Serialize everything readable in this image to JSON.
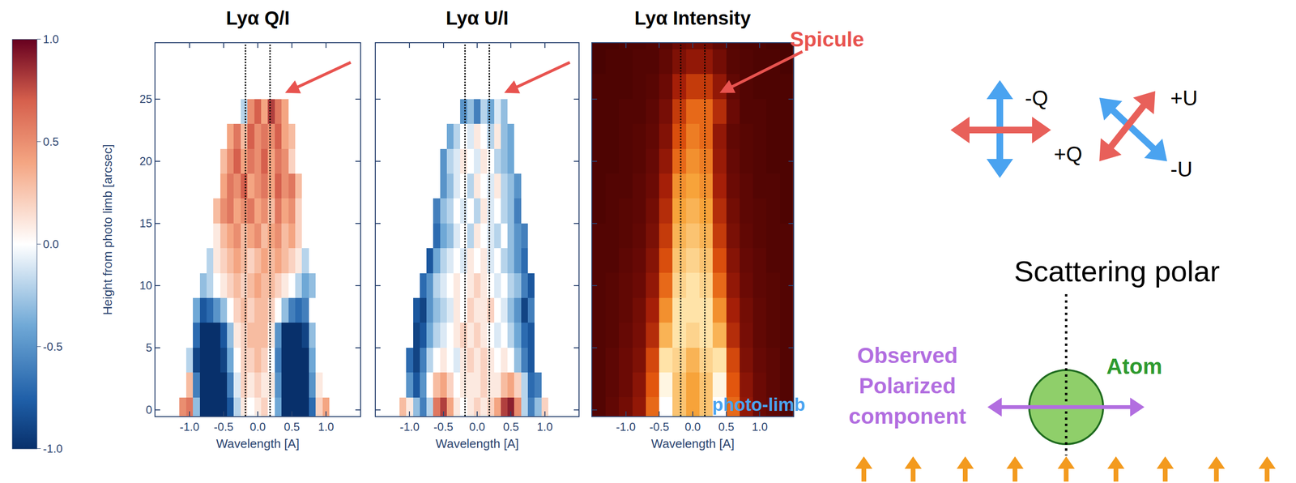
{
  "chart_data": [
    {
      "type": "heatmap",
      "title": "Lyα Q/I",
      "x": [
        -1.1,
        -1.0,
        -0.9,
        -0.8,
        -0.7,
        -0.6,
        -0.5,
        -0.4,
        -0.3,
        -0.2,
        -0.1,
        0.0,
        0.1,
        0.2,
        0.3,
        0.4,
        0.5,
        0.6,
        0.7,
        0.8,
        0.9,
        1.0,
        1.1
      ],
      "y": [
        0,
        2,
        4,
        6,
        8,
        10,
        12,
        14,
        16,
        18,
        20,
        22,
        24
      ],
      "z": [
        [
          0.5,
          0.6,
          -0.3,
          -1,
          -1,
          -1,
          -1,
          -0.8,
          -0.2,
          0.1,
          0.0,
          0.1,
          0.2,
          0.0,
          -0.4,
          -1,
          -1,
          -1,
          -1,
          -0.7,
          0.2,
          0.4,
          null
        ],
        [
          null,
          0.3,
          -0.6,
          -1,
          -1,
          -1,
          -1,
          -0.6,
          -0.1,
          0.2,
          0.1,
          0.2,
          0.1,
          0.1,
          -0.5,
          -1,
          -1,
          -1,
          -1,
          -0.5,
          0.1,
          null,
          null
        ],
        [
          null,
          -0.2,
          -0.9,
          -1,
          -1,
          -1,
          -0.9,
          -0.4,
          0.0,
          0.2,
          0.2,
          0.3,
          0.2,
          0.0,
          -0.6,
          -1,
          -1,
          -1,
          -1,
          -0.4,
          null,
          null,
          null
        ],
        [
          null,
          null,
          -0.7,
          -1,
          -1,
          -1,
          -0.8,
          -0.3,
          0.1,
          0.2,
          0.3,
          0.3,
          0.3,
          0.1,
          -0.5,
          -1,
          -1,
          -1,
          -0.9,
          -0.3,
          null,
          null,
          null
        ],
        [
          null,
          null,
          -0.4,
          -0.8,
          -0.7,
          -0.5,
          -0.3,
          0.0,
          0.2,
          0.3,
          0.2,
          0.3,
          0.3,
          0.2,
          0.0,
          -0.3,
          -0.6,
          -0.7,
          -0.6,
          null,
          null,
          null,
          null
        ],
        [
          null,
          null,
          null,
          -0.3,
          -0.2,
          0.0,
          0.1,
          0.2,
          0.3,
          0.2,
          0.3,
          0.4,
          0.3,
          0.3,
          0.2,
          0.1,
          0.0,
          -0.2,
          -0.4,
          -0.3,
          null,
          null,
          null
        ],
        [
          null,
          null,
          null,
          null,
          -0.2,
          0.1,
          0.2,
          0.3,
          0.4,
          0.3,
          0.2,
          0.3,
          0.4,
          0.3,
          0.4,
          0.3,
          0.2,
          0.1,
          -0.2,
          null,
          null,
          null,
          null
        ],
        [
          null,
          null,
          null,
          null,
          null,
          0.1,
          0.3,
          0.4,
          0.5,
          0.3,
          0.4,
          0.5,
          0.3,
          0.4,
          0.5,
          0.3,
          0.4,
          0.2,
          0.0,
          null,
          null,
          null,
          null
        ],
        [
          null,
          null,
          null,
          null,
          null,
          0.3,
          0.5,
          0.6,
          0.4,
          0.5,
          0.6,
          0.4,
          0.5,
          0.3,
          0.6,
          0.4,
          0.5,
          0.2,
          null,
          null,
          null,
          null,
          null
        ],
        [
          null,
          null,
          null,
          null,
          null,
          null,
          0.4,
          0.6,
          0.5,
          0.7,
          0.4,
          0.5,
          0.6,
          0.4,
          0.7,
          0.5,
          0.6,
          0.3,
          null,
          null,
          null,
          null,
          null
        ],
        [
          null,
          null,
          null,
          null,
          null,
          null,
          0.3,
          0.5,
          0.7,
          0.4,
          0.6,
          0.5,
          0.7,
          0.4,
          0.6,
          0.5,
          0.2,
          null,
          null,
          null,
          null,
          null,
          null
        ],
        [
          null,
          null,
          null,
          null,
          null,
          null,
          null,
          0.4,
          0.6,
          0.3,
          0.7,
          0.5,
          0.6,
          0.5,
          0.7,
          0.4,
          0.3,
          null,
          null,
          null,
          null,
          null,
          null
        ],
        [
          null,
          null,
          null,
          null,
          null,
          null,
          null,
          null,
          null,
          -0.2,
          0.5,
          0.7,
          0.4,
          0.8,
          0.6,
          0.4,
          null,
          null,
          null,
          null,
          null,
          null,
          null
        ]
      ],
      "zlim": [
        -1,
        1
      ],
      "color": "blue-white-red",
      "colorbar_ticks": [
        {
          "value": -1,
          "label": "-1.0"
        },
        {
          "value": -0.5,
          "label": "-0.5"
        },
        {
          "value": 0,
          "label": "0.0"
        },
        {
          "value": 0.5,
          "label": "0.5"
        },
        {
          "value": 1,
          "label": "1.0"
        }
      ],
      "xlim": [
        -1.5,
        1.5
      ],
      "ylim": [
        -0.5,
        29.5
      ],
      "xticks": [
        {
          "value": -1,
          "label": "-1.0"
        },
        {
          "value": -0.5,
          "label": "-0.5"
        },
        {
          "value": 0,
          "label": "0.0"
        },
        {
          "value": 0.5,
          "label": "0.5"
        },
        {
          "value": 1,
          "label": "1.0"
        }
      ],
      "yticks": [
        0,
        5,
        10,
        15,
        20,
        25
      ],
      "xlabel": "Wavelength [A]",
      "ylabel": "Height from photo limb [arcsec]",
      "reference_lines": [
        -0.18,
        0.18
      ],
      "annotations": [
        {
          "x": 0.4,
          "y": 25.5,
          "color": "#e8534f"
        }
      ]
    },
    {
      "type": "heatmap",
      "title": "Lyα U/I",
      "x": [
        -1.1,
        -1.0,
        -0.9,
        -0.8,
        -0.7,
        -0.6,
        -0.5,
        -0.4,
        -0.3,
        -0.2,
        -0.1,
        0.0,
        0.1,
        0.2,
        0.3,
        0.4,
        0.5,
        0.6,
        0.7,
        0.8,
        0.9,
        1.0,
        1.1
      ],
      "y": [
        0,
        2,
        4,
        6,
        8,
        10,
        12,
        14,
        16,
        18,
        20,
        22,
        24
      ],
      "z": [
        [
          0.3,
          0.1,
          -0.3,
          -0.6,
          -0.2,
          0.6,
          0.8,
          0.4,
          0.1,
          0.0,
          0.1,
          0.2,
          0.1,
          0.2,
          0.4,
          0.8,
          0.9,
          0.5,
          -0.2,
          -0.6,
          -0.3,
          0.2,
          null
        ],
        [
          null,
          -0.5,
          -0.8,
          -0.5,
          0.0,
          0.3,
          0.4,
          0.2,
          0.0,
          0.1,
          0.1,
          0.1,
          0.2,
          0.1,
          0.1,
          0.3,
          0.4,
          0.2,
          -0.2,
          -0.7,
          -0.6,
          null,
          null
        ],
        [
          null,
          -0.7,
          -0.9,
          -0.6,
          -0.2,
          0.0,
          0.1,
          0.0,
          -0.1,
          0.1,
          0.2,
          0.1,
          0.2,
          0.1,
          0.0,
          0.1,
          0.0,
          -0.3,
          -0.6,
          -0.8,
          null,
          null,
          null
        ],
        [
          null,
          null,
          -0.9,
          -0.8,
          -0.4,
          -0.2,
          -0.1,
          0.0,
          0.1,
          0.2,
          0.1,
          0.2,
          0.1,
          0.0,
          -0.1,
          0.0,
          -0.2,
          -0.4,
          -0.7,
          -0.8,
          null,
          null,
          null
        ],
        [
          null,
          null,
          -0.8,
          -0.9,
          -0.5,
          -0.3,
          -0.2,
          -0.1,
          0.1,
          0.0,
          0.2,
          0.1,
          0.1,
          0.2,
          0.0,
          -0.1,
          -0.3,
          -0.5,
          -0.9,
          -0.6,
          null,
          null,
          null
        ],
        [
          null,
          null,
          null,
          -0.7,
          -0.5,
          -0.2,
          -0.1,
          0.0,
          0.1,
          0.0,
          0.1,
          0.2,
          0.1,
          0.0,
          -0.1,
          0.0,
          -0.2,
          -0.3,
          -0.6,
          -0.8,
          null,
          null,
          null
        ],
        [
          null,
          null,
          null,
          null,
          -0.8,
          -0.4,
          -0.2,
          -0.1,
          0.0,
          -0.1,
          0.1,
          0.0,
          0.1,
          -0.1,
          0.0,
          -0.2,
          -0.3,
          -0.5,
          -0.7,
          null,
          null,
          null,
          null
        ],
        [
          null,
          null,
          null,
          null,
          null,
          -0.7,
          -0.4,
          -0.3,
          -0.1,
          0.0,
          -0.2,
          0.1,
          0.0,
          -0.1,
          -0.2,
          0.0,
          -0.3,
          -0.5,
          -0.6,
          null,
          null,
          null,
          null
        ],
        [
          null,
          null,
          null,
          null,
          null,
          -0.6,
          -0.3,
          -0.2,
          0.0,
          -0.1,
          0.0,
          -0.2,
          0.1,
          -0.1,
          0.0,
          -0.2,
          -0.3,
          -0.6,
          null,
          null,
          null,
          null,
          null
        ],
        [
          null,
          null,
          null,
          null,
          null,
          null,
          -0.5,
          -0.3,
          -0.1,
          0.0,
          -0.2,
          0.1,
          0.0,
          -0.1,
          0.1,
          -0.2,
          -0.3,
          -0.5,
          null,
          null,
          null,
          null,
          null
        ],
        [
          null,
          null,
          null,
          null,
          null,
          null,
          -0.5,
          -0.2,
          -0.1,
          0.1,
          0.0,
          -0.1,
          0.1,
          0.0,
          -0.2,
          -0.3,
          -0.4,
          null,
          null,
          null,
          null,
          null,
          null
        ],
        [
          null,
          null,
          null,
          null,
          null,
          null,
          null,
          -0.4,
          -0.2,
          0.0,
          -0.1,
          0.1,
          0.0,
          -0.2,
          0.1,
          -0.3,
          -0.4,
          null,
          null,
          null,
          null,
          null,
          null
        ],
        [
          null,
          null,
          null,
          null,
          null,
          null,
          null,
          null,
          null,
          -0.5,
          -0.3,
          -0.6,
          -0.2,
          -0.4,
          -0.1,
          -0.3,
          null,
          null,
          null,
          null,
          null,
          null,
          null
        ]
      ],
      "zlim": [
        -1,
        1
      ],
      "color": "blue-white-red",
      "xlim": [
        -1.5,
        1.5
      ],
      "ylim": [
        -0.5,
        29.5
      ],
      "xticks": [
        {
          "value": -1,
          "label": "-1.0"
        },
        {
          "value": -0.5,
          "label": "-0.5"
        },
        {
          "value": 0,
          "label": "0.0"
        },
        {
          "value": 0.5,
          "label": "0.5"
        },
        {
          "value": 1,
          "label": "1.0"
        }
      ],
      "yticks": [
        0,
        5,
        10,
        15,
        20,
        25
      ],
      "tick_labels": "x",
      "xlabel": "Wavelength [A]",
      "reference_lines": [
        -0.18,
        0.18
      ],
      "annotations": [
        {
          "x": 0.4,
          "y": 25.5,
          "color": "#e8534f"
        }
      ]
    },
    {
      "type": "heatmap",
      "title": "Lyα Intensity",
      "x": [
        -1.4,
        -1.2,
        -1.0,
        -0.8,
        -0.6,
        -0.4,
        -0.2,
        0.0,
        0.2,
        0.4,
        0.6,
        0.8,
        1.0,
        1.2,
        1.4
      ],
      "y": [
        0,
        2,
        4,
        6,
        8,
        10,
        12,
        14,
        16,
        18,
        20,
        22,
        24,
        26,
        28,
        30
      ],
      "z": [
        [
          0.05,
          0.08,
          0.12,
          0.2,
          0.5,
          1.0,
          0.75,
          0.65,
          0.75,
          1.0,
          0.5,
          0.2,
          0.1,
          0.08,
          0.05
        ],
        [
          0.05,
          0.07,
          0.1,
          0.18,
          0.45,
          0.95,
          0.75,
          0.65,
          0.75,
          0.95,
          0.45,
          0.18,
          0.1,
          0.07,
          0.05
        ],
        [
          0.05,
          0.07,
          0.1,
          0.15,
          0.4,
          0.85,
          0.8,
          0.7,
          0.8,
          0.85,
          0.4,
          0.15,
          0.09,
          0.07,
          0.05
        ],
        [
          0.05,
          0.06,
          0.09,
          0.13,
          0.3,
          0.7,
          0.85,
          0.8,
          0.85,
          0.7,
          0.3,
          0.13,
          0.08,
          0.06,
          0.05
        ],
        [
          0.05,
          0.06,
          0.08,
          0.12,
          0.25,
          0.6,
          0.85,
          0.85,
          0.85,
          0.6,
          0.25,
          0.12,
          0.08,
          0.06,
          0.05
        ],
        [
          0.05,
          0.06,
          0.08,
          0.1,
          0.2,
          0.5,
          0.8,
          0.85,
          0.8,
          0.5,
          0.2,
          0.1,
          0.07,
          0.06,
          0.05
        ],
        [
          0.05,
          0.05,
          0.07,
          0.09,
          0.17,
          0.42,
          0.75,
          0.8,
          0.75,
          0.42,
          0.17,
          0.09,
          0.07,
          0.05,
          0.05
        ],
        [
          0.05,
          0.05,
          0.06,
          0.08,
          0.14,
          0.35,
          0.7,
          0.75,
          0.7,
          0.35,
          0.14,
          0.08,
          0.06,
          0.05,
          0.05
        ],
        [
          0.04,
          0.05,
          0.06,
          0.07,
          0.12,
          0.3,
          0.65,
          0.7,
          0.65,
          0.3,
          0.12,
          0.07,
          0.06,
          0.05,
          0.04
        ],
        [
          0.04,
          0.05,
          0.05,
          0.07,
          0.1,
          0.25,
          0.6,
          0.65,
          0.6,
          0.25,
          0.1,
          0.07,
          0.05,
          0.05,
          0.04
        ],
        [
          0.04,
          0.04,
          0.05,
          0.06,
          0.09,
          0.2,
          0.5,
          0.6,
          0.55,
          0.22,
          0.09,
          0.06,
          0.05,
          0.04,
          0.04
        ],
        [
          0.04,
          0.04,
          0.05,
          0.06,
          0.08,
          0.16,
          0.42,
          0.55,
          0.5,
          0.2,
          0.08,
          0.06,
          0.05,
          0.04,
          0.04
        ],
        [
          0.04,
          0.04,
          0.05,
          0.05,
          0.07,
          0.13,
          0.35,
          0.5,
          0.5,
          0.3,
          0.1,
          0.05,
          0.05,
          0.04,
          0.04
        ],
        [
          0.04,
          0.04,
          0.04,
          0.05,
          0.06,
          0.1,
          0.25,
          0.35,
          0.35,
          0.2,
          0.08,
          0.05,
          0.04,
          0.04,
          0.04
        ],
        [
          0.03,
          0.04,
          0.04,
          0.05,
          0.05,
          0.08,
          0.15,
          0.2,
          0.2,
          0.12,
          0.06,
          0.05,
          0.04,
          0.04,
          0.03
        ],
        [
          0.03,
          0.03,
          0.04,
          0.04,
          0.05,
          0.06,
          0.1,
          0.12,
          0.12,
          0.08,
          0.05,
          0.04,
          0.04,
          0.03,
          0.03
        ]
      ],
      "zlim": [
        0,
        1
      ],
      "color": "red-hot",
      "xlim": [
        -1.5,
        1.5
      ],
      "ylim": [
        -0.5,
        29.5
      ],
      "xticks": [
        {
          "value": -1,
          "label": "-1.0"
        },
        {
          "value": -0.5,
          "label": "-0.5"
        },
        {
          "value": 0,
          "label": "0.0"
        },
        {
          "value": 0.5,
          "label": "0.5"
        },
        {
          "value": 1,
          "label": "1.0"
        }
      ],
      "yticks": [
        0,
        5,
        10,
        15,
        20,
        25
      ],
      "tick_labels": "x",
      "xlabel": "Wavelength [A]",
      "reference_lines": [
        -0.18,
        0.18
      ],
      "annotations": [
        {
          "text": "Spicule",
          "x": 0.4,
          "y": 25.5,
          "color": "#e8534f"
        }
      ]
    }
  ],
  "diagram": {
    "q_minus": "-Q",
    "q_plus": "+Q",
    "u_plus": "+U",
    "u_minus": "-U",
    "title": "Scattering polar",
    "atom": "Atom",
    "observed": "Observed Polarized component",
    "photo_limb": "photo-limb"
  }
}
